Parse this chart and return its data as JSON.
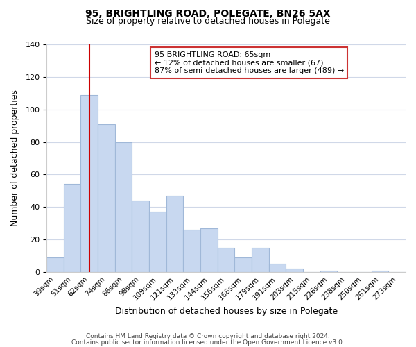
{
  "title1": "95, BRIGHTLING ROAD, POLEGATE, BN26 5AX",
  "title2": "Size of property relative to detached houses in Polegate",
  "xlabel": "Distribution of detached houses by size in Polegate",
  "ylabel": "Number of detached properties",
  "footer1": "Contains HM Land Registry data © Crown copyright and database right 2024.",
  "footer2": "Contains public sector information licensed under the Open Government Licence v3.0.",
  "annotation_line1": "95 BRIGHTLING ROAD: 65sqm",
  "annotation_line2": "← 12% of detached houses are smaller (67)",
  "annotation_line3": "87% of semi-detached houses are larger (489) →",
  "bar_color": "#c8d8f0",
  "bar_edge_color": "#a0b8d8",
  "vline_color": "#cc0000",
  "vline_x_index": 2,
  "categories": [
    "39sqm",
    "51sqm",
    "62sqm",
    "74sqm",
    "86sqm",
    "98sqm",
    "109sqm",
    "121sqm",
    "133sqm",
    "144sqm",
    "156sqm",
    "168sqm",
    "179sqm",
    "191sqm",
    "203sqm",
    "215sqm",
    "226sqm",
    "238sqm",
    "250sqm",
    "261sqm",
    "273sqm"
  ],
  "values": [
    9,
    54,
    109,
    91,
    80,
    44,
    37,
    47,
    26,
    27,
    15,
    9,
    15,
    5,
    2,
    0,
    1,
    0,
    0,
    1,
    0
  ],
  "ylim": [
    0,
    140
  ],
  "yticks": [
    0,
    20,
    40,
    60,
    80,
    100,
    120,
    140
  ],
  "background_color": "#ffffff",
  "grid_color": "#d0d8e8"
}
